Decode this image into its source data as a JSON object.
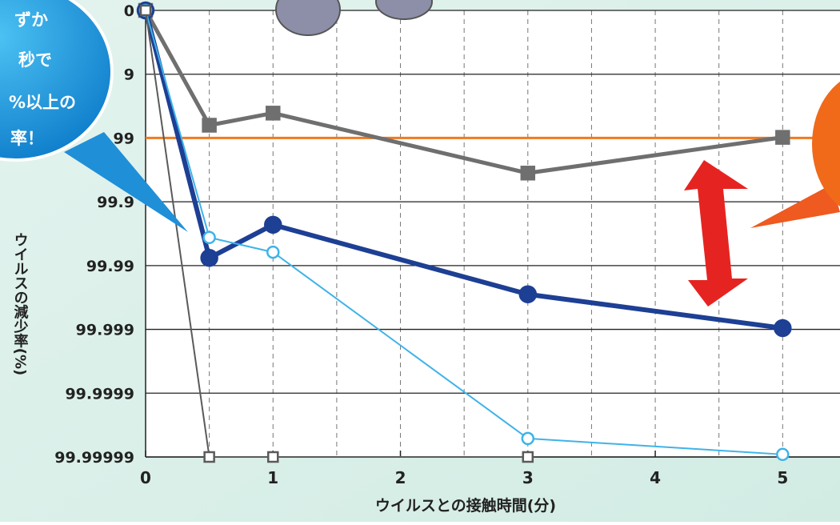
{
  "chart_data": {
    "type": "line",
    "y_label": "ウイルスの減少率(%)",
    "x_label": "ウイルスとの接触時間(分)",
    "annotation": [
      "ずか",
      "秒で",
      "%以上の",
      "率！"
    ],
    "xlim": [
      0,
      5.45
    ],
    "xticks": [
      0,
      1,
      2,
      3,
      4,
      5
    ],
    "minor_xticks": [
      0.5,
      1,
      1.5,
      2,
      2.5,
      3,
      3.5,
      4,
      4.5,
      5
    ],
    "ylim": [
      0,
      7
    ],
    "y_reversed": true,
    "yticks": [
      {
        "value": 0,
        "label": "0"
      },
      {
        "value": 1,
        "label": "9"
      },
      {
        "value": 2,
        "label": "99"
      },
      {
        "value": 3,
        "label": "99.9"
      },
      {
        "value": 4,
        "label": "99.99"
      },
      {
        "value": 5,
        "label": "99.999"
      },
      {
        "value": 6,
        "label": "99.9999"
      },
      {
        "value": 7,
        "label": "99.99999"
      }
    ],
    "grid": true,
    "reference_line": {
      "value": 2,
      "color": "#f07a1e"
    },
    "series": [
      {
        "x": [
          0,
          0.5,
          1,
          3,
          5
        ],
        "values": [
          0,
          1.8,
          1.61,
          2.55,
          1.99
        ],
        "color": "#6f6f6f",
        "marker": "square",
        "filled": true,
        "width": 5
      },
      {
        "x": [
          0,
          0.5,
          1,
          3,
          5
        ],
        "values": [
          0,
          3.88,
          3.36,
          4.45,
          4.98
        ],
        "color": "#1d3f94",
        "marker": "circle",
        "filled": true,
        "width": 6
      },
      {
        "x": [
          0,
          0.5,
          1,
          3,
          5
        ],
        "values": [
          0,
          3.56,
          3.79,
          6.71,
          6.96
        ],
        "color": "#3fb3e8",
        "marker": "circle",
        "filled": false,
        "width": 2
      },
      {
        "x": [
          0,
          0.5,
          1,
          3
        ],
        "values": [
          0,
          7,
          7,
          7
        ],
        "color": "#5a5a5a",
        "marker": "square",
        "filled": false,
        "width": 2
      }
    ]
  }
}
